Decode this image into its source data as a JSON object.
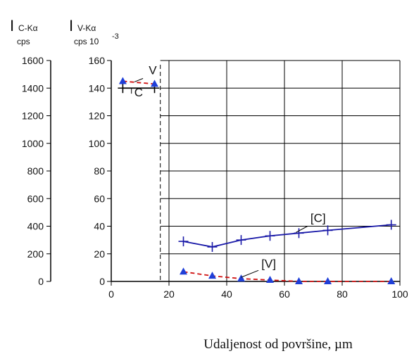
{
  "chart_data": {
    "type": "line",
    "xlabel": "Udaljenost od površine, µm",
    "x_ticks": [
      "0",
      "20",
      "40",
      "60",
      "80",
      "100"
    ],
    "xlim": [
      0,
      100
    ],
    "grid": true,
    "left_axis": {
      "label_main": "I",
      "label_sub": "C-Kα",
      "unit": "cps",
      "ylim": [
        0,
        1600
      ],
      "ticks": [
        "0",
        "200",
        "400",
        "600",
        "800",
        "1000",
        "1200",
        "1400",
        "1600"
      ]
    },
    "right_axis": {
      "label_main": "I",
      "label_sub": "V-Kα",
      "unit": "cps 10",
      "unit_exp": "-3",
      "ylim": [
        0,
        160
      ],
      "ticks": [
        "0",
        "20",
        "40",
        "60",
        "80",
        "100",
        "120",
        "140",
        "160"
      ]
    },
    "divider_x": 17,
    "series": [
      {
        "name": "C",
        "color": "#000000",
        "marker": "plus",
        "dashed": false,
        "x": [
          4,
          15
        ],
        "y": [
          140,
          140
        ]
      },
      {
        "name": "V",
        "color": "#d01010",
        "marker": "triangle",
        "marker_color": "#1f3fd8",
        "dashed": true,
        "x": [
          4,
          15
        ],
        "y": [
          145,
          143
        ]
      },
      {
        "name": "[C]",
        "color": "#1a1aa8",
        "marker": "plus",
        "dashed": false,
        "x": [
          25,
          35,
          45,
          55,
          65,
          75,
          97
        ],
        "y": [
          29,
          25,
          30,
          33,
          35,
          37,
          41
        ]
      },
      {
        "name": "[V]",
        "color": "#d01010",
        "marker": "triangle",
        "marker_color": "#1f3fd8",
        "dashed": true,
        "x": [
          25,
          35,
          45,
          55,
          65,
          75,
          97
        ],
        "y": [
          7,
          4,
          2,
          1,
          0,
          0,
          0
        ]
      }
    ],
    "annotations": [
      {
        "text": "V",
        "x": 13,
        "y": 150
      },
      {
        "text": "C",
        "x": 8,
        "y": 134
      },
      {
        "text": "[C]",
        "x": 69,
        "y": 43
      },
      {
        "text": "[V]",
        "x": 52,
        "y": 10
      }
    ]
  }
}
